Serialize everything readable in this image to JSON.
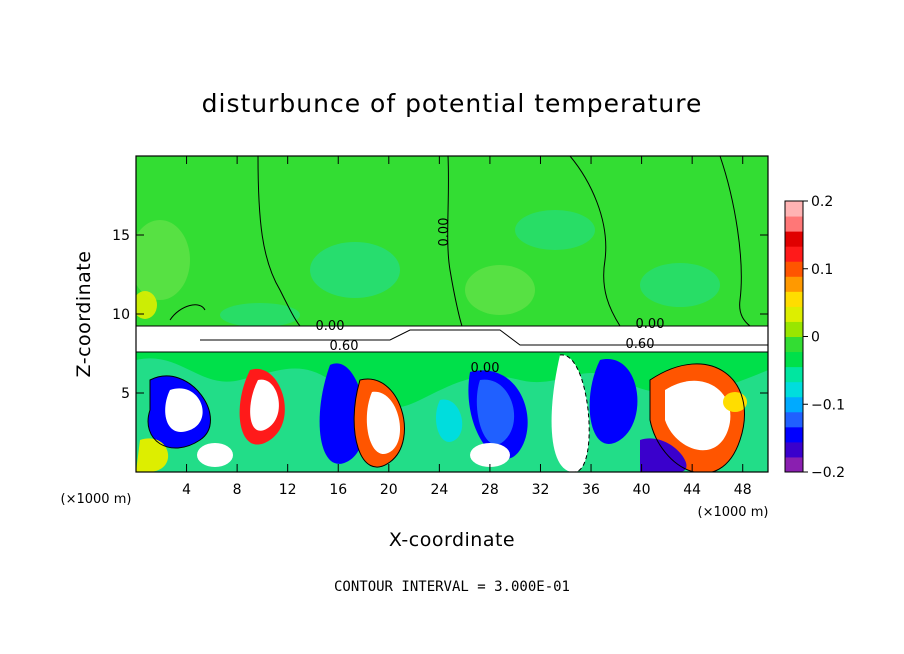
{
  "chart_data": {
    "type": "heatmap",
    "title": "disturbunce of potential temperature",
    "xlabel": "X-coordinate",
    "ylabel": "Z-coordinate",
    "x_unit_label": "(×1000 m)",
    "z_unit_label": "(×1000 m)",
    "xlim": [
      0,
      50
    ],
    "ylim": [
      0,
      20
    ],
    "x_ticks": [
      4,
      8,
      12,
      16,
      20,
      24,
      28,
      32,
      36,
      40,
      44,
      48
    ],
    "x_tick_labels": [
      "4",
      "8",
      "12",
      "16",
      "20",
      "24",
      "28",
      "32",
      "36",
      "40",
      "44",
      "48"
    ],
    "y_ticks": [
      5,
      10,
      15
    ],
    "y_tick_labels": [
      "5",
      "10",
      "15"
    ],
    "colorbar": {
      "range": [
        -0.2,
        0.2
      ],
      "ticks": [
        0.2,
        0.1,
        0,
        -0.1,
        -0.2
      ],
      "tick_labels": [
        "0.2",
        "0.1",
        "0",
        "−0.1",
        "−0.2"
      ],
      "colors": [
        "#8a1fb0",
        "#3a00cc",
        "#0000ff",
        "#2060ff",
        "#00aaff",
        "#00dddd",
        "#00e6a0",
        "#00e04a",
        "#33dd33",
        "#99e600",
        "#ddee00",
        "#ffdd00",
        "#ff9900",
        "#ff5500",
        "#ff1a1a",
        "#e00000",
        "#ff7777",
        "#ffb3b3"
      ]
    },
    "contour_labels": [
      "0.00",
      "0.00",
      "0.60",
      "0.00",
      "0.00",
      "0.60"
    ],
    "contour_interval_text": "CONTOUR INTERVAL = 3.000E-01",
    "upper_field_color": "#33dd33"
  }
}
